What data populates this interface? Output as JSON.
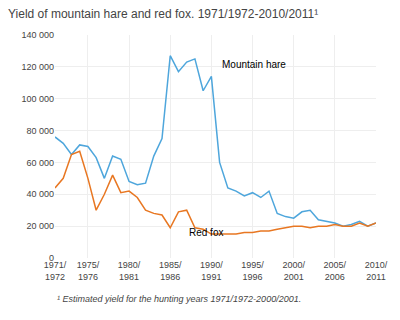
{
  "chart_data": {
    "type": "line",
    "title": "Yield of mountain hare and red fox. 1971/1972-2010/2011¹",
    "footnote": "¹ Estimated yield for the hunting years 1971/1972-2000/2001.",
    "categories": [
      "1971/\n1972",
      null,
      null,
      null,
      "1975/\n1976",
      null,
      null,
      null,
      null,
      "1980/\n1981",
      null,
      null,
      null,
      null,
      "1985/\n1986",
      null,
      null,
      null,
      null,
      "1990/\n1991",
      null,
      null,
      null,
      null,
      "1995/\n1996",
      null,
      null,
      null,
      null,
      "2000/\n2001",
      null,
      null,
      null,
      null,
      "2005/\n2006",
      null,
      null,
      null,
      null,
      "2010/\n2011"
    ],
    "series": [
      {
        "name": "Mountain hare",
        "color": "#4ea6dc",
        "values": [
          76000,
          72000,
          65000,
          71000,
          70000,
          63000,
          50000,
          64000,
          62000,
          48000,
          46000,
          47000,
          64000,
          75000,
          127000,
          117000,
          123000,
          125000,
          105000,
          114000,
          60000,
          44000,
          42000,
          39000,
          41000,
          38000,
          42000,
          28000,
          26000,
          25000,
          29000,
          30000,
          24000,
          23000,
          22000,
          20000,
          21000,
          23000,
          20000,
          22000
        ]
      },
      {
        "name": "Red fox",
        "color": "#e87722",
        "values": [
          44000,
          50000,
          65000,
          67000,
          50000,
          30000,
          40000,
          52000,
          41000,
          42000,
          38000,
          30000,
          28000,
          27000,
          19000,
          29000,
          30000,
          19000,
          18000,
          15000,
          15000,
          15000,
          15000,
          16000,
          16000,
          17000,
          17000,
          18000,
          19000,
          20000,
          20000,
          19000,
          20000,
          20000,
          21000,
          20000,
          20000,
          22000,
          20000,
          22000
        ]
      }
    ],
    "annotations": [
      {
        "text": "Mountain hare",
        "x": 20,
        "y": 117000
      },
      {
        "text": "Red fox",
        "x": 16,
        "y": 11000
      }
    ],
    "ylim": [
      0,
      140000
    ],
    "yticks": [
      0,
      {
        "value": 20000,
        "label": "20 000"
      },
      {
        "value": 40000,
        "label": "40 000"
      },
      {
        "value": 60000,
        "label": "60 000"
      },
      {
        "value": 80000,
        "label": "80 000"
      },
      {
        "value": 100000,
        "label": "100 000"
      },
      {
        "value": 120000,
        "label": "120 000"
      },
      {
        "value": 140000,
        "label": "140 000"
      }
    ],
    "grid": true
  }
}
